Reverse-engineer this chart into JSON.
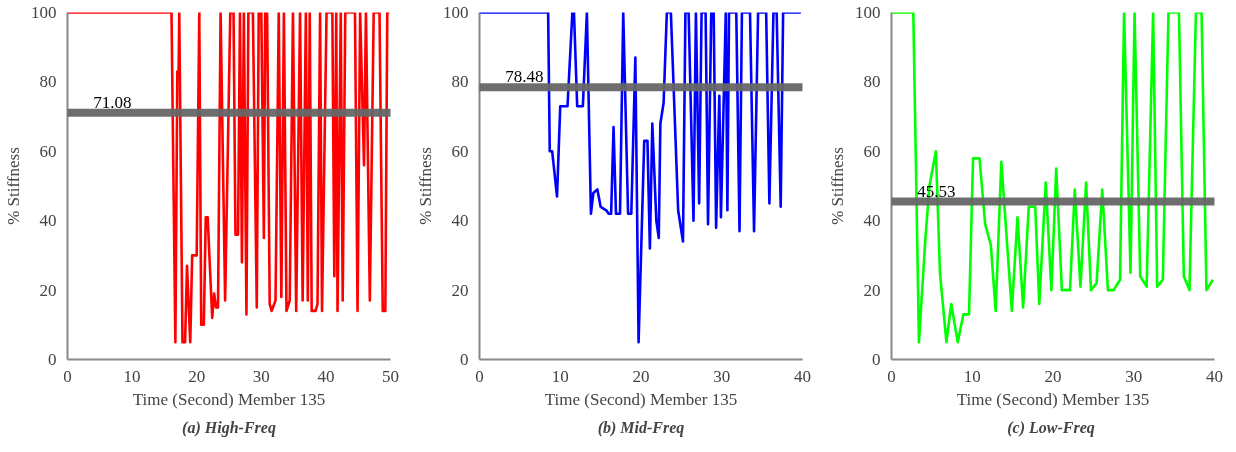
{
  "chart_data": [
    {
      "type": "line",
      "title": "(a) High-Freq",
      "xlabel": "Time (Second) Member 135",
      "ylabel": "% Stiffness",
      "xlim": [
        0,
        50
      ],
      "ylim": [
        0,
        100
      ],
      "xticks": [
        0,
        10,
        20,
        30,
        40,
        50
      ],
      "yticks": [
        0,
        20,
        40,
        60,
        80,
        100
      ],
      "grid": false,
      "marker": "none",
      "line_style": "solid",
      "series": [
        {
          "color": "#ff0000",
          "x": [
            0,
            16.1,
            16.7,
            17.0,
            17.2,
            17.3,
            17.8,
            18.2,
            18.5,
            19.0,
            19.3,
            20.0,
            20.4,
            20.7,
            21.1,
            21.4,
            21.7,
            22.4,
            22.7,
            23.0,
            23.3,
            23.7,
            24.4,
            25.2,
            25.7,
            26.0,
            26.4,
            26.7,
            27.0,
            27.3,
            27.7,
            28.0,
            28.7,
            29.3,
            29.6,
            30.0,
            30.4,
            30.6,
            30.9,
            31.3,
            31.6,
            32.2,
            32.7,
            33.1,
            33.5,
            33.9,
            34.4,
            34.9,
            35.4,
            36.0,
            36.4,
            36.9,
            37.2,
            37.5,
            37.8,
            38.4,
            38.7,
            39.1,
            39.4,
            40.1,
            41.0,
            41.3,
            41.6,
            41.8,
            42.3,
            42.6,
            43.0,
            44.5,
            44.9,
            45.3,
            45.9,
            46.2,
            46.8,
            47.4,
            48.3,
            48.8,
            49.2,
            49.5,
            49.8
          ],
          "values": [
            100,
            100,
            5,
            83,
            83,
            100,
            5,
            5,
            27,
            5,
            30,
            30,
            100,
            10,
            10,
            41,
            41,
            12,
            19,
            15,
            15,
            100,
            17,
            100,
            100,
            36,
            36,
            100,
            28,
            100,
            13,
            100,
            100,
            15,
            100,
            100,
            35,
            100,
            100,
            16,
            14,
            17,
            100,
            18,
            100,
            14,
            17,
            100,
            14,
            100,
            17,
            100,
            17,
            100,
            14,
            14,
            16,
            100,
            14,
            100,
            100,
            24,
            100,
            14,
            100,
            17,
            100,
            100,
            14,
            100,
            56,
            100,
            17,
            100,
            100,
            14,
            14,
            100,
            100
          ]
        }
      ],
      "ref_lines": [
        {
          "axis": "y",
          "value": 71.08,
          "label": "71.08",
          "color": "#666666"
        }
      ]
    },
    {
      "type": "line",
      "title": "(b) Mid-Freq",
      "xlabel": "Time (Second) Member 135",
      "ylabel": "% Stiffness",
      "xlim": [
        0,
        40
      ],
      "ylim": [
        0,
        100
      ],
      "xticks": [
        0,
        10,
        20,
        30,
        40
      ],
      "yticks": [
        0,
        20,
        40,
        60,
        80,
        100
      ],
      "grid": false,
      "marker": "none",
      "line_style": "solid",
      "series": [
        {
          "color": "#0000ff",
          "x": [
            0,
            8.5,
            8.7,
            9.0,
            9.6,
            10.0,
            10.9,
            11.5,
            11.7,
            12.1,
            12.8,
            13.3,
            13.8,
            14.1,
            14.6,
            15.0,
            15.7,
            16.0,
            16.3,
            16.6,
            16.9,
            17.4,
            17.8,
            18.4,
            18.8,
            19.3,
            19.7,
            20.4,
            20.8,
            21.1,
            21.4,
            21.9,
            22.2,
            22.4,
            22.8,
            23.2,
            23.7,
            24.6,
            25.2,
            25.5,
            25.9,
            26.5,
            26.8,
            27.2,
            27.5,
            28.0,
            28.3,
            28.7,
            29.0,
            29.3,
            29.7,
            29.9,
            30.5,
            30.7,
            30.9,
            31.8,
            32.2,
            32.5,
            33.5,
            34.0,
            34.5,
            35.5,
            35.9,
            36.4,
            36.8,
            37.3,
            37.6,
            39.8
          ],
          "values": [
            100,
            100,
            60,
            60,
            47,
            73,
            73,
            100,
            100,
            73,
            73,
            100,
            42,
            48,
            49,
            44,
            43,
            42,
            42,
            67,
            42,
            42,
            100,
            42,
            42,
            87,
            5,
            63,
            63,
            32,
            68,
            40,
            35,
            68,
            74,
            100,
            100,
            43,
            34,
            100,
            100,
            40,
            100,
            45,
            100,
            100,
            39,
            100,
            100,
            38,
            76,
            41,
            100,
            43,
            100,
            100,
            37,
            100,
            100,
            37,
            100,
            100,
            45,
            100,
            100,
            44,
            100,
            100
          ]
        }
      ],
      "ref_lines": [
        {
          "axis": "y",
          "value": 78.48,
          "label": "78.48",
          "color": "#666666"
        }
      ]
    },
    {
      "type": "line",
      "title": "(c)  Low-Freq",
      "xlabel": "Time (Second) Member 135",
      "ylabel": "% Stiffness",
      "xlim": [
        0,
        40
      ],
      "ylim": [
        0,
        100
      ],
      "xticks": [
        0,
        10,
        20,
        30,
        40
      ],
      "yticks": [
        0,
        20,
        40,
        60,
        80,
        100
      ],
      "grid": false,
      "marker": "none",
      "line_style": "solid",
      "series": [
        {
          "color": "#00ff00",
          "x": [
            0,
            2.7,
            3.4,
            4.2,
            4.7,
            5.5,
            6.0,
            6.8,
            7.4,
            8.2,
            8.9,
            9.6,
            10.1,
            10.9,
            11.6,
            12.3,
            12.9,
            13.6,
            14.9,
            15.6,
            16.3,
            17.0,
            17.8,
            18.3,
            19.1,
            19.8,
            20.4,
            21.1,
            22.1,
            22.7,
            23.4,
            24.1,
            24.7,
            25.4,
            26.1,
            26.8,
            27.5,
            28.3,
            28.8,
            29.6,
            30.1,
            30.8,
            31.6,
            32.4,
            32.9,
            33.6,
            34.3,
            35.6,
            36.2,
            36.9,
            37.7,
            38.4,
            39.0,
            39.8
          ],
          "values": [
            100,
            100,
            5,
            35,
            50,
            60,
            25,
            5,
            16,
            5,
            13,
            13,
            58,
            58,
            39,
            33,
            14,
            57,
            14,
            41,
            15,
            44,
            44,
            16,
            51,
            20,
            55,
            20,
            20,
            49,
            21,
            51,
            20,
            22,
            49,
            20,
            20,
            23,
            100,
            25,
            100,
            24,
            21,
            100,
            21,
            23,
            100,
            100,
            24,
            20,
            100,
            100,
            20,
            23
          ]
        }
      ],
      "ref_lines": [
        {
          "axis": "y",
          "value": 45.53,
          "label": "45.53",
          "color": "#666666"
        }
      ]
    }
  ]
}
